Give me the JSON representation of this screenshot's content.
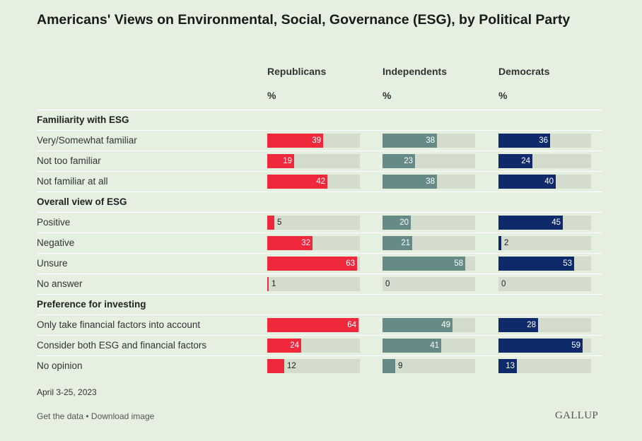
{
  "chart_data": {
    "type": "bar",
    "title": "Americans' Views on Environmental, Social, Governance (ESG), by Political Party",
    "unit": "%",
    "series": [
      {
        "name": "Republicans",
        "color": "#f0283c"
      },
      {
        "name": "Independents",
        "color": "#668a86"
      },
      {
        "name": "Democrats",
        "color": "#0f2a6b"
      }
    ],
    "groups": [
      {
        "heading": "Familiarity with ESG",
        "rows": [
          {
            "label": "Very/Somewhat familiar",
            "values": [
              39,
              38,
              36
            ]
          },
          {
            "label": "Not too familiar",
            "values": [
              19,
              23,
              24
            ]
          },
          {
            "label": "Not familiar at all",
            "values": [
              42,
              38,
              40
            ]
          }
        ]
      },
      {
        "heading": "Overall view of ESG",
        "rows": [
          {
            "label": "Positive",
            "values": [
              5,
              20,
              45
            ]
          },
          {
            "label": "Negative",
            "values": [
              32,
              21,
              2
            ]
          },
          {
            "label": "Unsure",
            "values": [
              63,
              58,
              53
            ]
          },
          {
            "label": "No answer",
            "values": [
              1,
              0,
              0
            ]
          }
        ]
      },
      {
        "heading": "Preference for investing",
        "rows": [
          {
            "label": "Only take financial factors into account",
            "values": [
              64,
              49,
              28
            ]
          },
          {
            "label": "Consider both ESG and financial factors",
            "values": [
              24,
              41,
              59
            ]
          },
          {
            "label": "No opinion",
            "values": [
              12,
              9,
              13
            ]
          }
        ]
      }
    ],
    "xlim": [
      0,
      65
    ]
  },
  "footer": {
    "date": "April 3-25, 2023",
    "get_data": "Get the data",
    "separator": " • ",
    "download": "Download image",
    "brand": "GALLUP"
  }
}
